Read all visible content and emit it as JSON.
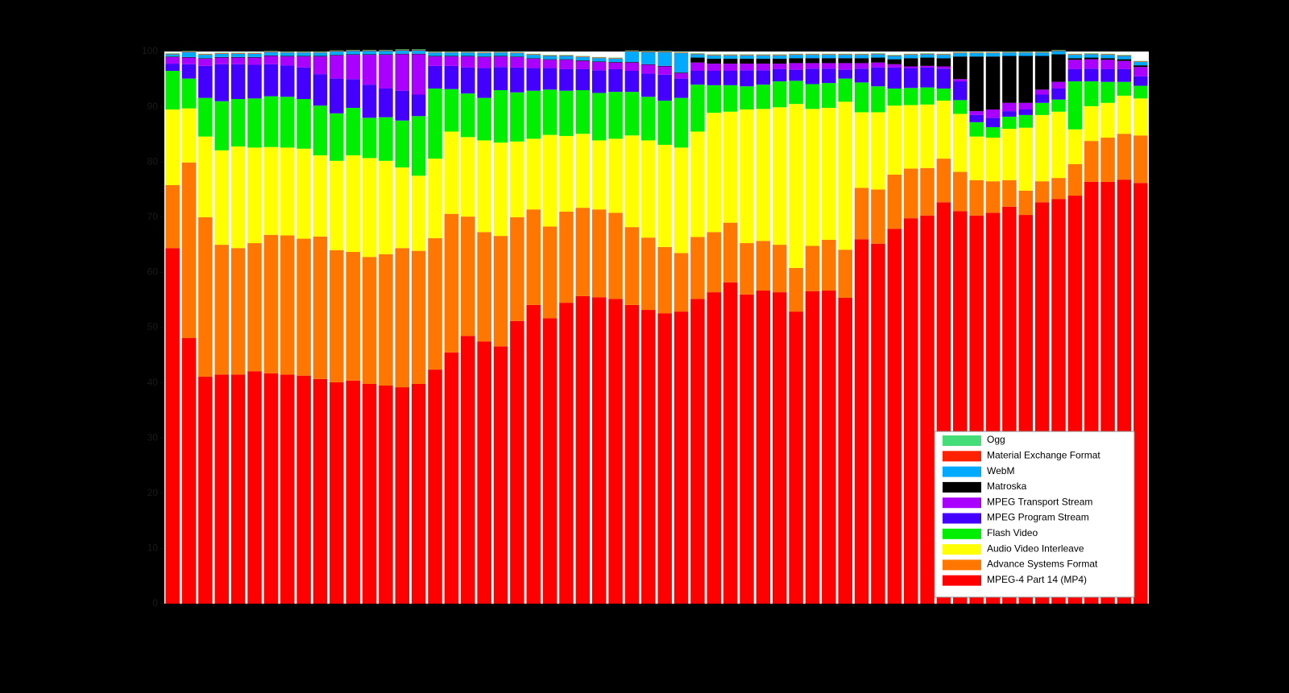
{
  "chart_data": {
    "type": "stacked_bar",
    "categories": [
      null,
      null,
      null,
      null,
      null,
      null,
      null,
      null,
      null,
      null,
      null,
      null,
      null,
      null,
      null,
      null,
      null,
      null,
      null,
      null,
      null,
      null,
      null,
      null,
      null,
      null,
      null,
      null,
      null,
      null,
      null,
      null,
      null,
      null,
      null,
      null,
      null,
      null,
      null,
      null,
      null,
      null,
      null,
      null,
      null,
      null,
      null,
      null,
      null,
      null,
      null,
      null,
      null,
      null,
      null,
      null,
      null,
      null,
      null,
      null
    ],
    "ylim": [
      0,
      100
    ],
    "yticks": [
      0,
      10,
      20,
      30,
      40,
      50,
      60,
      70,
      80,
      90,
      100
    ],
    "legend": "lower right",
    "series": [
      {
        "name": "MPEG-4 Part 14 (MP4)",
        "color": "#ff0000",
        "values": [
          64.4,
          48.1,
          41.1,
          41.5,
          41.5,
          42.1,
          41.7,
          41.5,
          41.3,
          40.7,
          40.1,
          40.4,
          39.8,
          39.5,
          39.2,
          39.8,
          42.4,
          45.5,
          48.5,
          47.5,
          46.6,
          51.2,
          54.1,
          51.7,
          54.5,
          55.7,
          55.5,
          55.2,
          54.1,
          53.2,
          52.6,
          52.9,
          55.2,
          56.4,
          58.2,
          56,
          56.7,
          56.4,
          52.9,
          56.6,
          56.7,
          55.4,
          66,
          65.2,
          67.9,
          69.8,
          70.3,
          72.7,
          71.1,
          70.3,
          70.8,
          71.9,
          70.4,
          72.7,
          73.3,
          73.9,
          76.4,
          76.4,
          76.8,
          76.2
        ]
      },
      {
        "name": "Advance Systems Format",
        "color": "#ff7700",
        "values": [
          11.4,
          31.8,
          28.9,
          23.5,
          22.9,
          23.2,
          25.1,
          25.2,
          24.8,
          25.8,
          23.9,
          23.3,
          23,
          23.8,
          25.2,
          24.1,
          23.8,
          25.1,
          21.6,
          19.8,
          20,
          18.8,
          17.3,
          16.6,
          16.5,
          16,
          15.9,
          15.6,
          14.1,
          13.1,
          12,
          10.6,
          11.2,
          10.9,
          10.8,
          9.3,
          9,
          8.6,
          7.9,
          8.2,
          9.2,
          8.7,
          9.3,
          9.8,
          9.8,
          9,
          8.6,
          7.9,
          7.1,
          6.4,
          5.7,
          4.8,
          4.4,
          3.8,
          3.8,
          5.7,
          7.4,
          8,
          8.3,
          8.6
        ]
      },
      {
        "name": "Audio Video Interleave",
        "color": "#ffff00",
        "values": [
          13.7,
          9.8,
          14.6,
          17.1,
          18.4,
          17.3,
          15.9,
          15.9,
          16.3,
          14.7,
          16.2,
          17.5,
          17.9,
          16.9,
          14.6,
          13.6,
          14.4,
          14.9,
          14.4,
          16.6,
          16.9,
          13.7,
          12.8,
          16.6,
          13.7,
          13.4,
          12.5,
          13.4,
          16.6,
          17.6,
          18.5,
          19.1,
          19.1,
          21.6,
          20.1,
          24.2,
          23.9,
          24.9,
          29.7,
          24.8,
          23.9,
          26.8,
          13.7,
          14,
          12.5,
          11.5,
          11.5,
          10.5,
          10.5,
          7.9,
          7.9,
          9.3,
          11.4,
          12,
          12,
          6.3,
          6.3,
          6.3,
          6.9,
          6.7
        ]
      },
      {
        "name": "Flash Video",
        "color": "#00ee00",
        "values": [
          7,
          5.4,
          7,
          8.9,
          8.6,
          8.9,
          9.2,
          9.2,
          9,
          9,
          8.6,
          8.6,
          7.3,
          7.9,
          8.5,
          10.8,
          12.7,
          7.7,
          7.9,
          7.7,
          9.5,
          8.9,
          8.7,
          8.2,
          8.2,
          7.9,
          8.6,
          8.5,
          7.9,
          7.9,
          8,
          9,
          8.5,
          5,
          4.8,
          4.2,
          4.4,
          4.7,
          4.2,
          4.5,
          4.5,
          4.2,
          5.4,
          4.7,
          3.1,
          3.1,
          3.1,
          2.2,
          2.5,
          2.6,
          1.9,
          2.2,
          2.3,
          2.2,
          2.2,
          8.7,
          4.5,
          3.8,
          2.5,
          2.3
        ]
      },
      {
        "name": "MPEG Program Stream",
        "color": "#4400ff",
        "values": [
          1.3,
          2.6,
          5.8,
          6.7,
          6.3,
          6.1,
          5.8,
          5.7,
          5.7,
          5.7,
          6.3,
          5.2,
          6,
          5.2,
          5.4,
          3.9,
          4.1,
          4.2,
          4.7,
          5.4,
          4.2,
          4.5,
          4.1,
          3.9,
          3.9,
          3.8,
          4.1,
          4.1,
          3.8,
          4.2,
          4.7,
          3.5,
          2.5,
          2.6,
          2.6,
          2.9,
          2.6,
          2.2,
          2,
          2.8,
          2.6,
          1.6,
          2.5,
          3.4,
          3.8,
          3.6,
          3.6,
          3.6,
          3.4,
          1.3,
          1.7,
          1,
          1,
          1.5,
          2,
          2.2,
          2.3,
          2.3,
          2.3,
          1.7
        ]
      },
      {
        "name": "MPEG Transport Stream",
        "color": "#aa00ff",
        "values": [
          1.2,
          1.2,
          1.3,
          1.2,
          1.2,
          1.3,
          1.5,
          1.6,
          2,
          3.2,
          4.2,
          4.4,
          5.4,
          6.1,
          6.6,
          7.3,
          1.7,
          1.7,
          2,
          2,
          1.9,
          1.9,
          1.7,
          1.5,
          1.7,
          1.5,
          1.5,
          1.2,
          1.5,
          1.6,
          1.5,
          1,
          1.5,
          1.3,
          1.3,
          1.2,
          1.2,
          1,
          1.2,
          1,
          1,
          1.2,
          1,
          0.9,
          0.6,
          0.3,
          0.3,
          0.4,
          0.4,
          0.7,
          1.5,
          1.5,
          1.2,
          0.9,
          1.2,
          1.7,
          1.7,
          1.7,
          1.5,
          1.7
        ]
      },
      {
        "name": "Matroska",
        "color": "#000000",
        "values": [
          0.1,
          0.1,
          0.1,
          0.1,
          0.1,
          0.1,
          0.1,
          0.1,
          0.1,
          0.1,
          0.1,
          0.1,
          0.1,
          0.1,
          0.1,
          0.1,
          0.1,
          0.1,
          0.1,
          0.1,
          0.1,
          0.1,
          0.1,
          0.1,
          0.1,
          0.1,
          0.1,
          0.1,
          0.1,
          0.1,
          0.1,
          0.1,
          0.9,
          0.9,
          0.9,
          0.9,
          0.9,
          0.9,
          0.9,
          0.9,
          0.9,
          0.9,
          0.9,
          0.9,
          0.9,
          1.5,
          1.5,
          1.5,
          4.1,
          9.9,
          9.6,
          8.5,
          8.5,
          6.1,
          5,
          0.3,
          0.3,
          0.3,
          0.3,
          0.3
        ]
      },
      {
        "name": "WebM",
        "color": "#00aaff",
        "values": [
          0.4,
          0.9,
          0.6,
          0.6,
          0.6,
          0.6,
          0.6,
          0.6,
          0.6,
          0.6,
          0.6,
          0.6,
          0.6,
          0.6,
          0.6,
          0.6,
          0.6,
          0.6,
          0.6,
          0.6,
          0.6,
          0.6,
          0.6,
          0.6,
          0.6,
          0.6,
          0.6,
          0.6,
          1.9,
          2.2,
          2.5,
          3.5,
          0.6,
          0.6,
          0.6,
          0.6,
          0.6,
          0.6,
          0.6,
          0.6,
          0.6,
          0.6,
          0.6,
          0.6,
          0.6,
          0.6,
          0.6,
          0.6,
          0.6,
          0.6,
          0.6,
          0.6,
          0.6,
          0.6,
          0.6,
          0.6,
          0.6,
          0.6,
          0.6,
          0.6
        ]
      },
      {
        "name": "Material Exchange Format",
        "color": "#ff2200",
        "values": [
          0.1,
          0.1,
          0.1,
          0.1,
          0.1,
          0.1,
          0.1,
          0.1,
          0.1,
          0.1,
          0.1,
          0.1,
          0.1,
          0.1,
          0.1,
          0.1,
          0.1,
          0.1,
          0.1,
          0.1,
          0.1,
          0.1,
          0.1,
          0.1,
          0.1,
          0.1,
          0.1,
          0.1,
          0.1,
          0.1,
          0.1,
          0.1,
          0.1,
          0.1,
          0.1,
          0.1,
          0.1,
          0.1,
          0.1,
          0.1,
          0.1,
          0.1,
          0.1,
          0.1,
          0.1,
          0.1,
          0.1,
          0.1,
          0.1,
          0.1,
          0.1,
          0.1,
          0.1,
          0.1,
          0.1,
          0.1,
          0.1,
          0.1,
          0.1,
          0.1
        ]
      },
      {
        "name": "Ogg",
        "color": "#44dd77",
        "values": [
          0.1,
          0.1,
          0.1,
          0.1,
          0.1,
          0.1,
          0.1,
          0.1,
          0.1,
          0.1,
          0.1,
          0.1,
          0.1,
          0.1,
          0.1,
          0.1,
          0.1,
          0.1,
          0.1,
          0.1,
          0.1,
          0.1,
          0.1,
          0.1,
          0.1,
          0.1,
          0.1,
          0.1,
          0.1,
          0.1,
          0.1,
          0.1,
          0.1,
          0.1,
          0.1,
          0.1,
          0.1,
          0.1,
          0.1,
          0.1,
          0.1,
          0.1,
          0.1,
          0.1,
          0.1,
          0.1,
          0.1,
          0.1,
          0.1,
          0.1,
          0.1,
          0.1,
          0.1,
          0.1,
          0.1,
          0.1,
          0.1,
          0.1,
          0.1,
          0.1
        ]
      }
    ]
  }
}
